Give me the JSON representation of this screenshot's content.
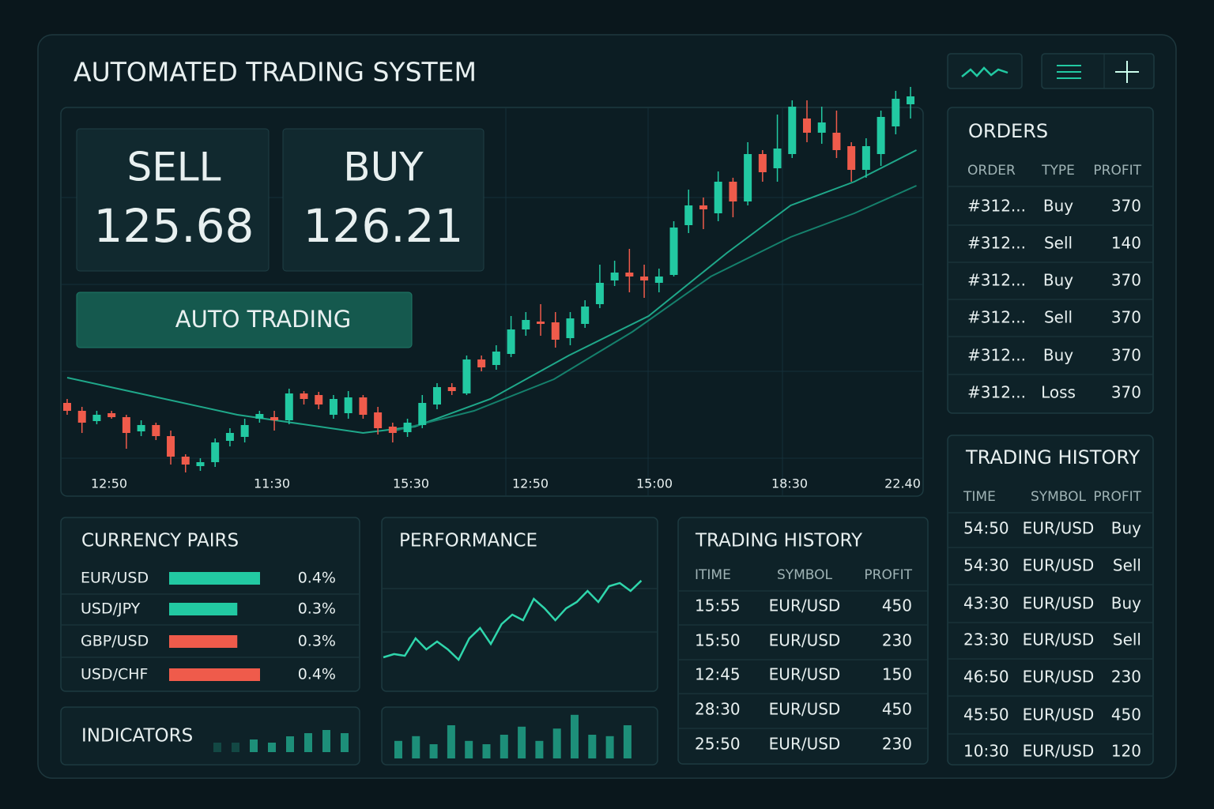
{
  "header": {
    "title": "AUTOMATED TRADING SYSTEM"
  },
  "quote": {
    "sell_label": "SELL",
    "sell_price": 125.68,
    "buy_label": "BUY",
    "buy_price": 126.21,
    "auto_button": "AUTO TRADING"
  },
  "chart_data": [
    {
      "type": "candlestick",
      "ylim": [
        0,
        100
      ],
      "up_color": "#22c9a2",
      "down_color": "#ef5b4b",
      "x_labels": [
        "12:50",
        "11:30",
        "15:30",
        "12:50",
        "15:00",
        "18:30",
        "22.40"
      ],
      "open": [
        18,
        16,
        13.4,
        15.4,
        14.4,
        10.8,
        12.4,
        9.6,
        4.4,
        2,
        3,
        8.4,
        9.4,
        14,
        14.4,
        13.6,
        20.4,
        20,
        15,
        15.4,
        19.4,
        15.6,
        12,
        10.6,
        12.4,
        17.6,
        22,
        20.4,
        29,
        27.6,
        30.4,
        36.6,
        38.6,
        38.4,
        34.4,
        38,
        43,
        49,
        51,
        50,
        48.4,
        50.4,
        63,
        68,
        66,
        74,
        69,
        81,
        77.4,
        81,
        90,
        86.4,
        86.4,
        83,
        77,
        81,
        88,
        93.6
      ],
      "close": [
        16,
        13,
        15,
        14.4,
        10.4,
        12.4,
        9.6,
        4.4,
        2.4,
        3,
        8,
        10.4,
        12.4,
        15.2,
        13.6,
        20.4,
        19,
        17.6,
        19,
        19.4,
        15,
        11.6,
        10.4,
        13,
        18,
        22,
        21,
        29,
        27,
        31,
        36.6,
        39,
        38,
        34,
        39.4,
        42.4,
        48.4,
        51,
        50,
        49,
        50,
        62.4,
        68,
        67,
        74,
        69,
        81,
        76.4,
        82.4,
        93,
        86.4,
        89,
        82,
        77,
        83,
        90.4,
        95,
        95.6
      ],
      "high": [
        19,
        17,
        16,
        16,
        15,
        13.6,
        13,
        11,
        5,
        4,
        9,
        11.6,
        14,
        16,
        16,
        21.6,
        21,
        20.8,
        20,
        21,
        20,
        17,
        13,
        14,
        20,
        23,
        23,
        30,
        30,
        32.6,
        40,
        41,
        43,
        41,
        41,
        44,
        53,
        54,
        57,
        53,
        52,
        64,
        72,
        70,
        76.6,
        75,
        84,
        82,
        91,
        94.6,
        94.6,
        93,
        92,
        84,
        85,
        92,
        97,
        98
      ],
      "low": [
        15,
        10.4,
        12.6,
        14,
        6.4,
        9.6,
        8.6,
        2.4,
        0.4,
        0.8,
        1.8,
        7,
        8,
        13,
        11,
        12.6,
        17.6,
        16.4,
        14,
        14,
        14,
        10,
        8,
        9.4,
        11.6,
        16.4,
        20,
        20,
        26,
        26.4,
        29.6,
        35,
        35,
        32,
        32.6,
        37,
        42,
        47.6,
        46,
        44.6,
        46,
        50,
        61,
        62,
        64,
        65,
        68,
        74,
        74,
        80,
        84,
        83.6,
        80,
        74,
        75,
        78,
        86,
        90
      ],
      "lines": [
        {
          "color": "#1fa88a",
          "x": [
            0,
            11.5,
            20,
            23.5,
            28.6,
            33.9,
            39.3,
            44.6,
            48.9,
            53.2,
            57.4
          ],
          "values": [
            24.4,
            15,
            10.4,
            12,
            19,
            30,
            40,
            56,
            68,
            74,
            82
          ]
        },
        {
          "color": "#15806c",
          "x": [
            22.2,
            27.5,
            32.9,
            38.2,
            43.5,
            48.9,
            53.2,
            57.4
          ],
          "values": [
            11,
            16,
            24,
            36,
            50,
            60,
            66,
            73
          ]
        }
      ]
    },
    {
      "type": "hbar",
      "title": "CURRENCY PAIRS",
      "categories": [
        "EUR/USD",
        "USD/JPY",
        "GBP/USD",
        "USD/CHF"
      ],
      "values": [
        0.4,
        0.3,
        0.3,
        0.4
      ],
      "value_labels": [
        "0.4%",
        "0.3%",
        "0.3%",
        "0.4%"
      ],
      "colors": [
        "#22c9a2",
        "#22c9a2",
        "#ef5b4b",
        "#ef5b4b"
      ],
      "xlim": [
        0,
        0.4
      ]
    },
    {
      "type": "line",
      "title": "PERFORMANCE",
      "color": "#2fd6ac",
      "ylim": [
        0,
        100
      ],
      "values": [
        12,
        14.7,
        13.3,
        28,
        18.7,
        25.3,
        18.7,
        10,
        28,
        36.7,
        23.3,
        40,
        48,
        43.3,
        61.3,
        53.3,
        43.3,
        53.3,
        58.7,
        68,
        58.7,
        72,
        74.7,
        68,
        76.7
      ]
    },
    {
      "type": "bar",
      "title": "INDICATORS",
      "color": "#1d8f79",
      "ylim": [
        0,
        10
      ],
      "values": [
        3,
        3,
        4,
        3,
        5,
        6,
        7,
        6
      ]
    },
    {
      "type": "bar",
      "color": "#1d8f79",
      "ylim": [
        0,
        10
      ],
      "values": [
        3.7,
        4.7,
        3,
        7,
        3.7,
        3,
        5,
        6.7,
        3.7,
        6.3,
        9.2,
        5,
        4.7,
        7
      ]
    }
  ],
  "orders": {
    "title": "ORDERS",
    "columns": [
      "ORDER",
      "TYPE",
      "PROFIT"
    ],
    "rows": [
      [
        "#312...",
        "Buy",
        370
      ],
      [
        "#312...",
        "Sell",
        140
      ],
      [
        "#312...",
        "Buy",
        370
      ],
      [
        "#312...",
        "Sell",
        370
      ],
      [
        "#312...",
        "Buy",
        370
      ],
      [
        "#312...",
        "Loss",
        370
      ]
    ],
    "type_colors": [
      "#e8f0f0",
      "#2fd6ac",
      "#e8f0f0",
      "#ef6a58",
      "#e8f0f0",
      "#2fd6ac"
    ]
  },
  "history_mid": {
    "title": "TRADING HISTORY",
    "columns": [
      "ITIME",
      "SYMBOL",
      "PROFIT"
    ],
    "rows": [
      [
        "15:55",
        "EUR/USD",
        450
      ],
      [
        "15:50",
        "EUR/USD",
        230
      ],
      [
        "12:45",
        "EUR/USD",
        150
      ],
      [
        "28:30",
        "EUR/USD",
        450
      ],
      [
        "25:50",
        "EUR/USD",
        230
      ]
    ],
    "profit_colors": [
      "#2fd6ac",
      "#ef6a58",
      "#2fd6ac",
      "#2fd6ac",
      "#2fd6ac"
    ]
  },
  "history_right": {
    "title": "TRADING HISTORY",
    "columns": [
      "TIME",
      "SYMBOL",
      "PROFIT"
    ],
    "rows": [
      [
        "54:50",
        "EUR/USD",
        "Buy"
      ],
      [
        "54:30",
        "EUR/USD",
        "Sell"
      ],
      [
        "43:30",
        "EUR/USD",
        "Buy"
      ],
      [
        "23:30",
        "EUR/USD",
        "Sell"
      ],
      [
        "46:50",
        "EUR/USD",
        230
      ],
      [
        "45:50",
        "EUR/USD",
        450
      ],
      [
        "10:30",
        "EUR/USD",
        120
      ]
    ],
    "profit_colors": [
      "#e8f0f0",
      "#ef6a58",
      "#2fd6ac",
      "#2fd6ac",
      "#2fd6ac",
      "#2fd6ac",
      "#2fd6ac"
    ]
  }
}
